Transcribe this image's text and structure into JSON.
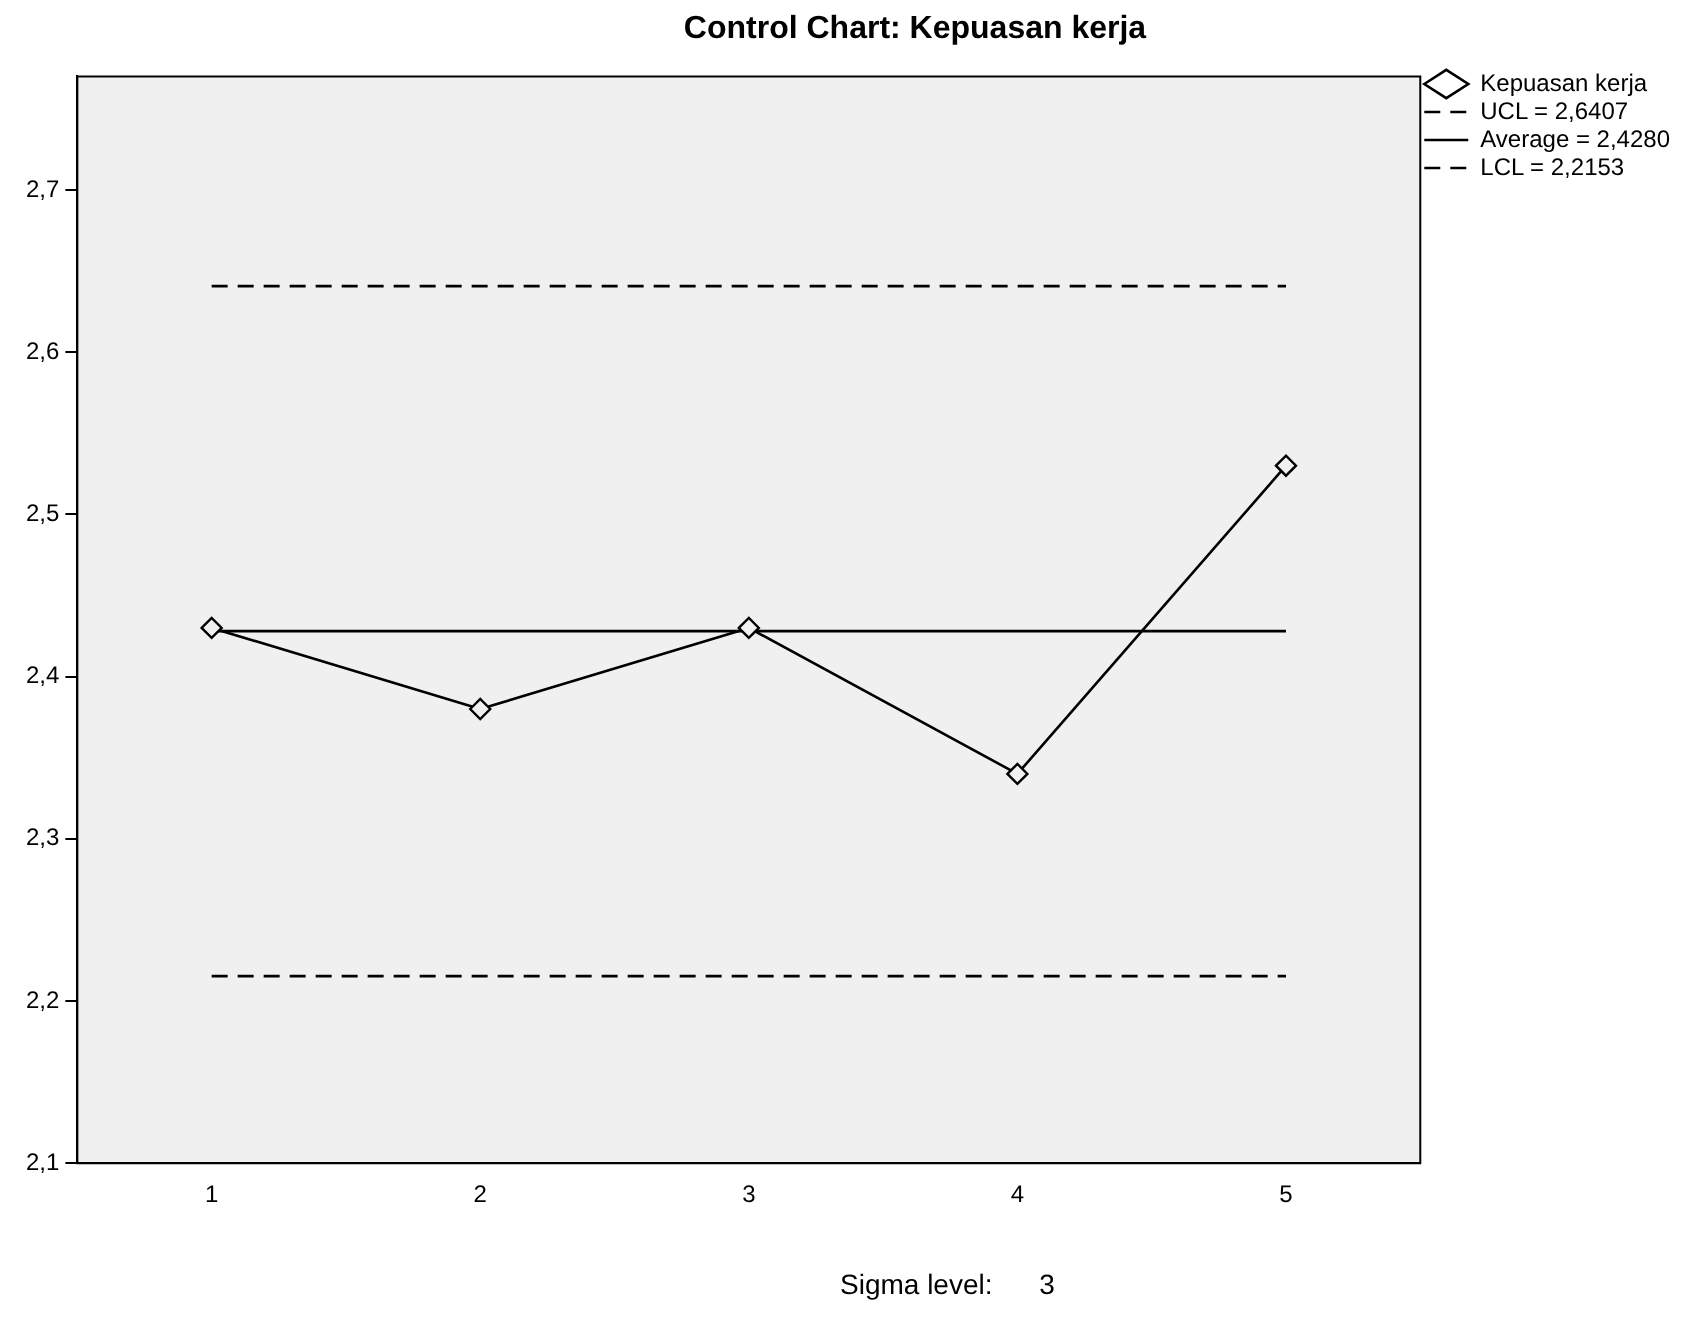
{
  "chart_data": {
    "type": "line",
    "title": "Control Chart: Kepuasan kerja",
    "categories": [
      "1",
      "2",
      "3",
      "4",
      "5"
    ],
    "series": [
      {
        "name": "Kepuasan kerja",
        "color": "#000000",
        "values": [
          2.43,
          2.38,
          2.43,
          2.34,
          2.53
        ],
        "marker": "diamond",
        "line_style": "solid"
      },
      {
        "name": "UCL = 2,6407",
        "color": "#000000",
        "values": [
          2.6407,
          2.6407,
          2.6407,
          2.6407,
          2.6407
        ],
        "marker": "none",
        "line_style": "dashed"
      },
      {
        "name": "Average = 2,4280",
        "color": "#000000",
        "values": [
          2.428,
          2.428,
          2.428,
          2.428,
          2.428
        ],
        "marker": "none",
        "line_style": "solid"
      },
      {
        "name": "LCL = 2,2153",
        "color": "#000000",
        "values": [
          2.2153,
          2.2153,
          2.2153,
          2.2153,
          2.2153
        ],
        "marker": "none",
        "line_style": "dashed"
      }
    ],
    "ylim": [
      2.1,
      2.77
    ],
    "yticks": [
      {
        "value": 2.1,
        "label": "2,1"
      },
      {
        "value": 2.2,
        "label": "2,2"
      },
      {
        "value": 2.3,
        "label": "2,3"
      },
      {
        "value": 2.4,
        "label": "2,4"
      },
      {
        "value": 2.5,
        "label": "2,5"
      },
      {
        "value": 2.6,
        "label": "2,6"
      },
      {
        "value": 2.7,
        "label": "2,7"
      }
    ],
    "grid": false,
    "legend": "top right",
    "annotations": [
      "Sigma level:      3"
    ]
  }
}
